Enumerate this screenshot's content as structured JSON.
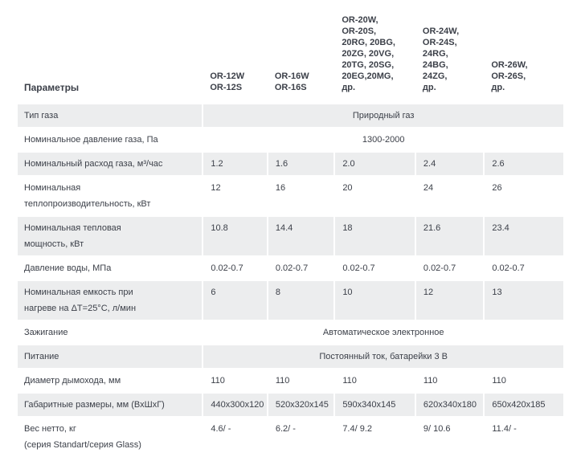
{
  "colors": {
    "row_shade": "#ecedee",
    "text": "#3c4049",
    "background": "#ffffff"
  },
  "table": {
    "header": {
      "param_label": "Параметры",
      "models": [
        "OR-12W\nOR-12S",
        "OR-16W\nOR-16S",
        "OR-20W,\nOR-20S,\n20RG, 20BG,\n20ZG, 20VG,\n20TG, 20SG,\n20EG,20MG, др.",
        "OR-24W,\nOR-24S,\n24RG,\n24BG,\n24ZG,\nдр.",
        "OR-26W,\nOR-26S,\nдр."
      ]
    },
    "rows": [
      {
        "label": "Тип газа",
        "span": "Природный газ"
      },
      {
        "label": "Номинальное давление газа, Па",
        "span": "1300-2000"
      },
      {
        "label": "Номинальный расход газа, м³/час",
        "values": [
          "1.2",
          "1.6",
          "2.0",
          "2.4",
          "2.6"
        ]
      },
      {
        "label": "Номинальная\nтеплопроизводительность, кВт",
        "values": [
          "12",
          "16",
          "20",
          "24",
          "26"
        ]
      },
      {
        "label": "Номинальная тепловая\nмощность, кВт",
        "values": [
          "10.8",
          "14.4",
          "18",
          "21.6",
          "23.4"
        ]
      },
      {
        "label": "Давление воды, МПа",
        "values": [
          "0.02-0.7",
          "0.02-0.7",
          "0.02-0.7",
          "0.02-0.7",
          "0.02-0.7"
        ]
      },
      {
        "label": "Номинальная емкость при\nнагреве на ΔT=25°C, л/мин",
        "values": [
          "6",
          "8",
          "10",
          "12",
          "13"
        ]
      },
      {
        "label": "Зажигание",
        "span": "Автоматическое электронное"
      },
      {
        "label": "Питание",
        "span": "Постоянный ток, батарейки 3 В"
      },
      {
        "label": "Диаметр дымохода, мм",
        "values": [
          "110",
          "110",
          "110",
          "110",
          "110"
        ]
      },
      {
        "label": "Габаритные размеры, мм (ВхШхГ)",
        "values": [
          "440x300x120",
          "520x320x145",
          "590x340x145",
          "620x340x180",
          "650x420x185"
        ]
      },
      {
        "label": "Вес нетто, кг\n(серия Standart/серия Glass)",
        "values": [
          "4.6/ -",
          "6.2/ -",
          "7.4/ 9.2",
          "9/ 10.6",
          "11.4/ -"
        ]
      }
    ]
  }
}
